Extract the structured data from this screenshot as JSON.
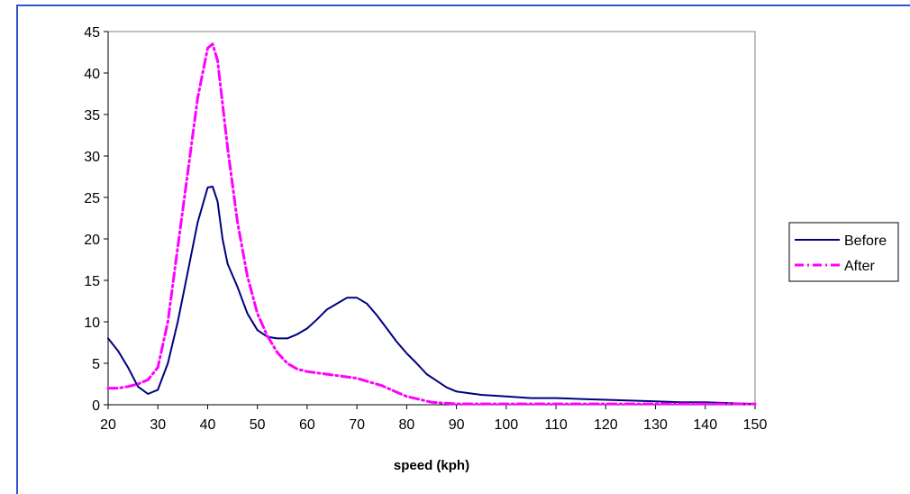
{
  "chart_data": {
    "type": "line",
    "title": "",
    "xlabel": "speed (kph)",
    "ylabel": "",
    "xlim": [
      20,
      150
    ],
    "ylim": [
      0,
      45
    ],
    "x_ticks": [
      20,
      30,
      40,
      50,
      60,
      70,
      80,
      90,
      100,
      110,
      120,
      130,
      140,
      150
    ],
    "y_ticks": [
      0,
      5,
      10,
      15,
      20,
      25,
      30,
      35,
      40,
      45
    ],
    "grid": false,
    "legend_position": "right",
    "series": [
      {
        "name": "Before",
        "color": "#000080",
        "style": "solid",
        "x": [
          20,
          22,
          24,
          26,
          28,
          30,
          32,
          34,
          36,
          38,
          40,
          41,
          42,
          43,
          44,
          46,
          48,
          50,
          52,
          54,
          56,
          58,
          60,
          62,
          64,
          66,
          68,
          70,
          72,
          74,
          76,
          78,
          80,
          82,
          84,
          86,
          88,
          90,
          95,
          100,
          105,
          110,
          115,
          120,
          125,
          130,
          135,
          140,
          145,
          150
        ],
        "values": [
          8,
          6.5,
          4.5,
          2.2,
          1.3,
          1.8,
          5,
          10,
          16,
          22,
          26.2,
          26.3,
          24.5,
          20,
          17,
          14.2,
          11,
          9,
          8.2,
          8,
          8,
          8.5,
          9.2,
          10.3,
          11.5,
          12.2,
          12.9,
          12.9,
          12.2,
          10.8,
          9.2,
          7.6,
          6.2,
          5,
          3.7,
          2.9,
          2.1,
          1.6,
          1.2,
          1.0,
          0.8,
          0.8,
          0.7,
          0.6,
          0.5,
          0.4,
          0.3,
          0.3,
          0.2,
          0.1
        ]
      },
      {
        "name": "After",
        "color": "#ff00ff",
        "style": "dash-dot",
        "x": [
          20,
          22,
          24,
          26,
          28,
          30,
          32,
          34,
          36,
          38,
          40,
          41,
          42,
          44,
          46,
          48,
          50,
          52,
          54,
          56,
          58,
          60,
          65,
          70,
          75,
          80,
          85,
          90,
          100,
          110,
          120,
          130,
          140,
          150
        ],
        "values": [
          2,
          2,
          2.2,
          2.5,
          3,
          4.5,
          10,
          19,
          28,
          37,
          43,
          43.5,
          41.5,
          31,
          22,
          15.5,
          11,
          8.3,
          6.3,
          5,
          4.3,
          4,
          3.6,
          3.2,
          2.3,
          1,
          0.3,
          0.1,
          0.1,
          0.1,
          0.1,
          0.1,
          0.1,
          0.1
        ]
      }
    ]
  }
}
